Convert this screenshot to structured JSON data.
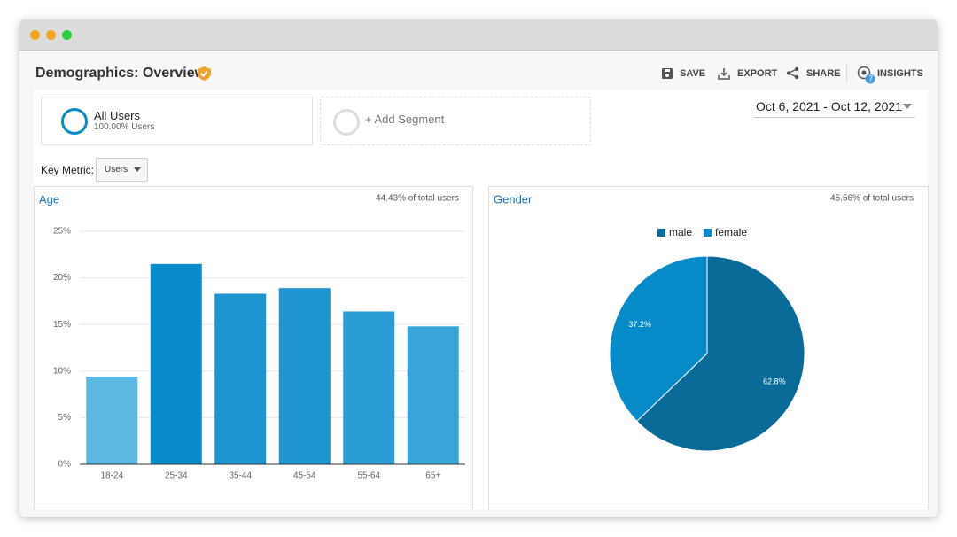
{
  "header": {
    "title": "Demographics: Overview"
  },
  "toolbar": {
    "save": "SAVE",
    "export": "EXPORT",
    "share": "SHARE",
    "insights": "INSIGHTS",
    "insights_badge": "7"
  },
  "date_range": "Oct 6, 2021 - Oct 12, 2021",
  "segments": [
    {
      "name": "All Users",
      "detail": "100.00% Users"
    },
    {
      "name": "+ Add Segment"
    }
  ],
  "key_metric": {
    "label": "Key Metric:",
    "value": "Users"
  },
  "chart_data": [
    {
      "type": "bar",
      "title": "Age",
      "subtitle": "44.43% of total users",
      "categories": [
        "18-24",
        "25-34",
        "35-44",
        "45-54",
        "55-64",
        "65+"
      ],
      "values": [
        9.4,
        21.5,
        18.3,
        18.9,
        16.4,
        14.8
      ],
      "colors": [
        "#5cb8e1",
        "#0a8bc9",
        "#1e94d0",
        "#1e94d0",
        "#2a9dd4",
        "#38a5d8"
      ],
      "ylim": [
        0,
        25
      ],
      "yticks": [
        {
          "value": 0,
          "label": "0%"
        },
        {
          "value": 5,
          "label": "5%"
        },
        {
          "value": 10,
          "label": "10%"
        },
        {
          "value": 15,
          "label": "15%"
        },
        {
          "value": 20,
          "label": "20%"
        },
        {
          "value": 25,
          "label": "25%"
        }
      ],
      "grid": true
    },
    {
      "type": "pie",
      "title": "Gender",
      "subtitle": "45.56% of total users",
      "categories": [
        "male",
        "female"
      ],
      "values": [
        62.8,
        37.2
      ],
      "value_labels": [
        "62.8%",
        "37.2%"
      ],
      "colors": [
        "#0b6b98",
        "#078ac8"
      ],
      "legend": "top"
    }
  ]
}
